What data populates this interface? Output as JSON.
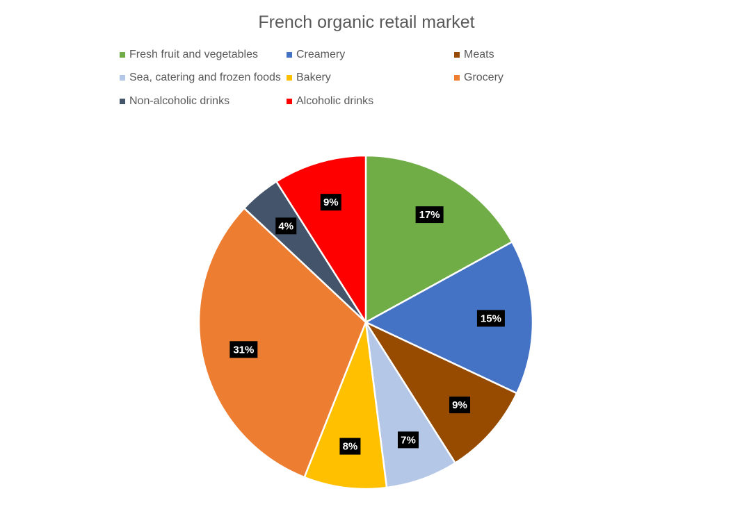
{
  "chart_data": {
    "type": "pie",
    "title": "French organic retail market",
    "legend_position": "top",
    "slices": [
      {
        "label": "Fresh fruit and vegetables",
        "value": 17,
        "display": "17%",
        "color": "#70AD47"
      },
      {
        "label": "Creamery",
        "value": 15,
        "display": "15%",
        "color": "#4472C4"
      },
      {
        "label": "Meats",
        "value": 9,
        "display": "9%",
        "color": "#964B00"
      },
      {
        "label": "Sea, catering and frozen foods",
        "value": 7,
        "display": "7%",
        "color": "#B4C7E7"
      },
      {
        "label": "Bakery",
        "value": 8,
        "display": "8%",
        "color": "#FFC000"
      },
      {
        "label": "Grocery",
        "value": 31,
        "display": "31%",
        "color": "#ED7D31"
      },
      {
        "label": "Non-alcoholic drinks",
        "value": 4,
        "display": "4%",
        "color": "#44546A"
      },
      {
        "label": "Alcoholic drinks",
        "value": 9,
        "display": "9%",
        "color": "#FF0000"
      }
    ]
  }
}
